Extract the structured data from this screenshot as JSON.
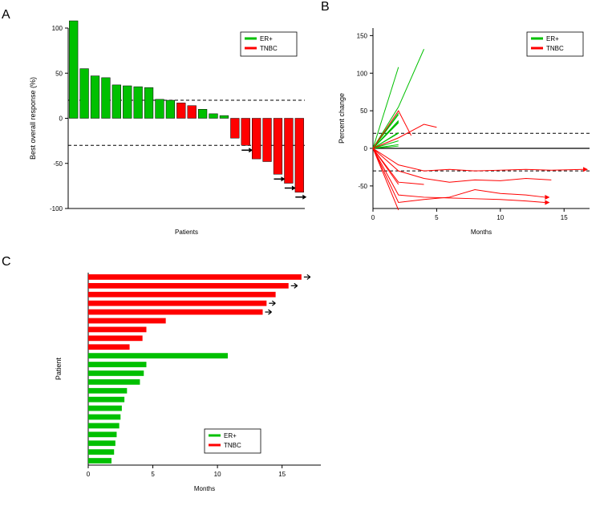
{
  "colors": {
    "er": "#00c000",
    "tnbc": "#ff0000",
    "axis": "#000000",
    "dash": "#000000",
    "bg": "#ffffff",
    "arrow": "#000000"
  },
  "legend": {
    "items": [
      {
        "label": "ER+",
        "color": "#00c000"
      },
      {
        "label": "TNBC",
        "color": "#ff0000"
      }
    ]
  },
  "panelA": {
    "label": "A",
    "xlabel": "Patients",
    "ylabel": "Best overall response (%)",
    "ylim": [
      -100,
      100
    ],
    "yticks": [
      -100,
      -50,
      0,
      50,
      100
    ],
    "ref_lines": [
      20,
      -30
    ],
    "bars": [
      {
        "v": 108,
        "c": "#00c000",
        "arrow": false
      },
      {
        "v": 55,
        "c": "#00c000",
        "arrow": false
      },
      {
        "v": 47,
        "c": "#00c000",
        "arrow": false
      },
      {
        "v": 45,
        "c": "#00c000",
        "arrow": false
      },
      {
        "v": 37,
        "c": "#00c000",
        "arrow": false
      },
      {
        "v": 36,
        "c": "#00c000",
        "arrow": false
      },
      {
        "v": 35,
        "c": "#00c000",
        "arrow": false
      },
      {
        "v": 34,
        "c": "#00c000",
        "arrow": false
      },
      {
        "v": 21,
        "c": "#00c000",
        "arrow": false
      },
      {
        "v": 20,
        "c": "#00c000",
        "arrow": false
      },
      {
        "v": 17,
        "c": "#ff0000",
        "arrow": false
      },
      {
        "v": 14,
        "c": "#ff0000",
        "arrow": false
      },
      {
        "v": 10,
        "c": "#00c000",
        "arrow": false
      },
      {
        "v": 5,
        "c": "#00c000",
        "arrow": false
      },
      {
        "v": 3,
        "c": "#00c000",
        "arrow": false
      },
      {
        "v": -22,
        "c": "#ff0000",
        "arrow": false
      },
      {
        "v": -30,
        "c": "#ff0000",
        "arrow": true
      },
      {
        "v": -45,
        "c": "#ff0000",
        "arrow": false
      },
      {
        "v": -48,
        "c": "#ff0000",
        "arrow": false
      },
      {
        "v": -62,
        "c": "#ff0000",
        "arrow": true
      },
      {
        "v": -72,
        "c": "#ff0000",
        "arrow": true
      },
      {
        "v": -82,
        "c": "#ff0000",
        "arrow": true
      }
    ]
  },
  "panelB": {
    "label": "B",
    "xlabel": "Months",
    "ylabel": "Percent change",
    "xlim": [
      0,
      17
    ],
    "xticks": [
      0,
      5,
      10,
      15
    ],
    "ylim": [
      -80,
      160
    ],
    "yticks": [
      -50,
      0,
      50,
      100,
      150
    ],
    "ref_lines": [
      20,
      -30
    ],
    "lines": [
      {
        "c": "#00c000",
        "pts": [
          [
            0,
            0
          ],
          [
            2,
            108
          ]
        ]
      },
      {
        "c": "#00c000",
        "pts": [
          [
            0,
            0
          ],
          [
            2,
            55
          ],
          [
            4,
            132
          ]
        ]
      },
      {
        "c": "#00c000",
        "pts": [
          [
            0,
            0
          ],
          [
            2,
            47
          ]
        ]
      },
      {
        "c": "#00c000",
        "pts": [
          [
            0,
            0
          ],
          [
            2,
            45
          ]
        ]
      },
      {
        "c": "#00c000",
        "pts": [
          [
            0,
            0
          ],
          [
            2,
            37
          ]
        ]
      },
      {
        "c": "#00c000",
        "pts": [
          [
            0,
            0
          ],
          [
            2,
            36
          ]
        ]
      },
      {
        "c": "#00c000",
        "pts": [
          [
            0,
            0
          ],
          [
            2,
            35
          ]
        ]
      },
      {
        "c": "#00c000",
        "pts": [
          [
            0,
            0
          ],
          [
            2,
            34
          ]
        ]
      },
      {
        "c": "#00c000",
        "pts": [
          [
            0,
            0
          ],
          [
            2,
            21
          ]
        ]
      },
      {
        "c": "#00c000",
        "pts": [
          [
            0,
            0
          ],
          [
            2,
            20
          ]
        ]
      },
      {
        "c": "#00c000",
        "pts": [
          [
            0,
            0
          ],
          [
            2,
            10
          ]
        ]
      },
      {
        "c": "#00c000",
        "pts": [
          [
            0,
            0
          ],
          [
            2,
            5
          ]
        ]
      },
      {
        "c": "#00c000",
        "pts": [
          [
            0,
            0
          ],
          [
            2,
            3
          ]
        ]
      },
      {
        "c": "#ff0000",
        "pts": [
          [
            0,
            0
          ],
          [
            2,
            50
          ],
          [
            3,
            17
          ]
        ]
      },
      {
        "c": "#ff0000",
        "pts": [
          [
            0,
            0
          ],
          [
            2,
            14
          ],
          [
            4,
            32
          ],
          [
            5,
            28
          ]
        ]
      },
      {
        "c": "#ff0000",
        "pts": [
          [
            0,
            0
          ],
          [
            2,
            -22
          ],
          [
            4,
            -30
          ],
          [
            6,
            -28
          ],
          [
            8,
            -30
          ],
          [
            10,
            -29
          ],
          [
            12,
            -28
          ],
          [
            14,
            -29
          ],
          [
            16.5,
            -28
          ]
        ],
        "arrow": true
      },
      {
        "c": "#ff0000",
        "pts": [
          [
            0,
            0
          ],
          [
            2,
            -30
          ],
          [
            4,
            -40
          ],
          [
            6,
            -45
          ],
          [
            8,
            -42
          ],
          [
            10,
            -43
          ],
          [
            12,
            -40
          ],
          [
            14,
            -42
          ]
        ]
      },
      {
        "c": "#ff0000",
        "pts": [
          [
            0,
            0
          ],
          [
            2,
            -45
          ],
          [
            4,
            -48
          ]
        ]
      },
      {
        "c": "#ff0000",
        "pts": [
          [
            0,
            0
          ],
          [
            2,
            -48
          ]
        ]
      },
      {
        "c": "#ff0000",
        "pts": [
          [
            0,
            0
          ],
          [
            2,
            -62
          ],
          [
            4,
            -65
          ],
          [
            6,
            -66
          ],
          [
            8,
            -67
          ],
          [
            10,
            -68
          ],
          [
            12,
            -70
          ],
          [
            13.5,
            -72
          ]
        ],
        "arrow": true
      },
      {
        "c": "#ff0000",
        "pts": [
          [
            0,
            0
          ],
          [
            2,
            -72
          ],
          [
            4,
            -68
          ],
          [
            6,
            -65
          ],
          [
            8,
            -55
          ],
          [
            10,
            -60
          ],
          [
            12,
            -62
          ],
          [
            13.5,
            -65
          ]
        ],
        "arrow": true
      },
      {
        "c": "#ff0000",
        "pts": [
          [
            0,
            0
          ],
          [
            2,
            -82
          ]
        ]
      }
    ]
  },
  "panelC": {
    "label": "C",
    "xlabel": "Months",
    "ylabel": "Patient",
    "xlim": [
      0,
      18
    ],
    "xticks": [
      0,
      5,
      10,
      15
    ],
    "bars": [
      {
        "v": 16.5,
        "c": "#ff0000",
        "arrow": true
      },
      {
        "v": 15.5,
        "c": "#ff0000",
        "arrow": true
      },
      {
        "v": 14.5,
        "c": "#ff0000",
        "arrow": false
      },
      {
        "v": 13.8,
        "c": "#ff0000",
        "arrow": true
      },
      {
        "v": 13.5,
        "c": "#ff0000",
        "arrow": true
      },
      {
        "v": 6.0,
        "c": "#ff0000",
        "arrow": false
      },
      {
        "v": 4.5,
        "c": "#ff0000",
        "arrow": false
      },
      {
        "v": 4.2,
        "c": "#ff0000",
        "arrow": false
      },
      {
        "v": 3.2,
        "c": "#ff0000",
        "arrow": false
      },
      {
        "v": 10.8,
        "c": "#00c000",
        "arrow": false
      },
      {
        "v": 4.5,
        "c": "#00c000",
        "arrow": false
      },
      {
        "v": 4.3,
        "c": "#00c000",
        "arrow": false
      },
      {
        "v": 4.0,
        "c": "#00c000",
        "arrow": false
      },
      {
        "v": 3.0,
        "c": "#00c000",
        "arrow": false
      },
      {
        "v": 2.8,
        "c": "#00c000",
        "arrow": false
      },
      {
        "v": 2.6,
        "c": "#00c000",
        "arrow": false
      },
      {
        "v": 2.5,
        "c": "#00c000",
        "arrow": false
      },
      {
        "v": 2.4,
        "c": "#00c000",
        "arrow": false
      },
      {
        "v": 2.2,
        "c": "#00c000",
        "arrow": false
      },
      {
        "v": 2.1,
        "c": "#00c000",
        "arrow": false
      },
      {
        "v": 2.0,
        "c": "#00c000",
        "arrow": false
      },
      {
        "v": 1.8,
        "c": "#00c000",
        "arrow": false
      }
    ]
  }
}
